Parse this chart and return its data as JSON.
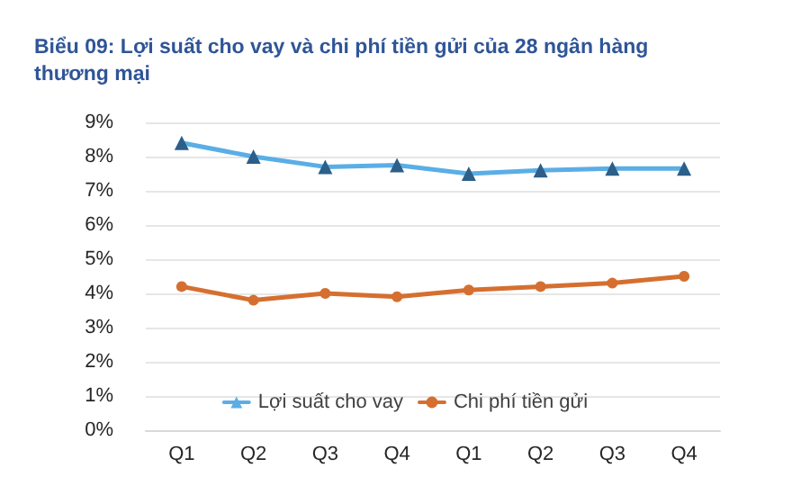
{
  "chart_data": {
    "type": "line",
    "title": "Biểu 09: Lợi suất cho vay và chi phí tiền gửi của 28 ngân hàng thương mại",
    "categories": [
      "Q1",
      "Q2",
      "Q3",
      "Q4",
      "Q1",
      "Q2",
      "Q3",
      "Q4"
    ],
    "series": [
      {
        "name": "Lợi suất cho vay",
        "color": "#5aaee6",
        "marker": "triangle",
        "values": [
          8.4,
          8.0,
          7.7,
          7.75,
          7.5,
          7.6,
          7.65,
          7.65
        ]
      },
      {
        "name": "Chi phí tiền gửi",
        "color": "#d56f30",
        "marker": "circle",
        "values": [
          4.2,
          3.8,
          4.0,
          3.9,
          4.1,
          4.2,
          4.3,
          4.5
        ]
      }
    ],
    "ylim": [
      0,
      9
    ],
    "yticks": [
      {
        "value": 0,
        "label": "0%"
      },
      {
        "value": 1,
        "label": "1%"
      },
      {
        "value": 2,
        "label": "2%"
      },
      {
        "value": 3,
        "label": "3%"
      },
      {
        "value": 4,
        "label": "4%"
      },
      {
        "value": 5,
        "label": "5%"
      },
      {
        "value": 6,
        "label": "6%"
      },
      {
        "value": 7,
        "label": "7%"
      },
      {
        "value": 8,
        "label": "8%"
      },
      {
        "value": 9,
        "label": "9%"
      }
    ],
    "grid": "y",
    "legend": "bottom",
    "line_style": "solid"
  }
}
